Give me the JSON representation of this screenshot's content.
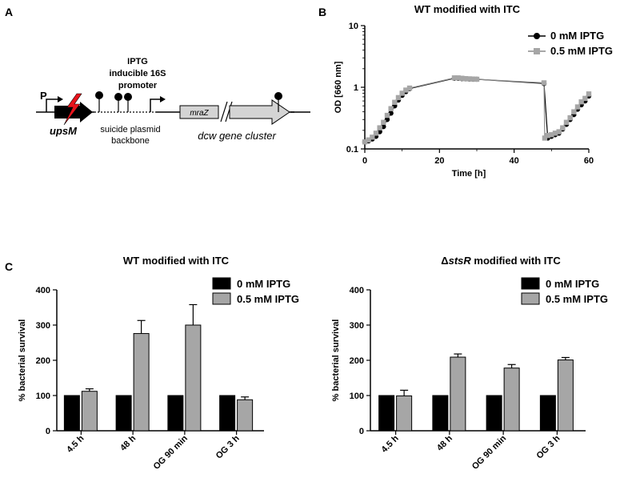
{
  "panels": {
    "a": "A",
    "b": "B",
    "c": "C"
  },
  "diagram": {
    "promoter_p": "P",
    "upsm": "upsM",
    "iptg_line1": "IPTG",
    "iptg_line2": "inducible 16S",
    "iptg_line3": "promoter",
    "plasmid_line1": "suicide plasmid",
    "plasmid_line2": "backbone",
    "mraz": "mraZ",
    "dcw": "dcw gene cluster",
    "colors": {
      "bolt": "#e8141c",
      "gene": "#d4d4d4",
      "black": "#000000"
    }
  },
  "chart_data": [
    {
      "type": "line",
      "title": "WT modified with ITC",
      "xlabel": "Time [h]",
      "ylabel": "OD [660 nm]",
      "yscale": "log",
      "xlim": [
        0,
        60
      ],
      "ylim": [
        0.1,
        10
      ],
      "xticks": [
        "0",
        "20",
        "40",
        "60"
      ],
      "yticks": [
        "0.1",
        "1",
        "10"
      ],
      "legend": "top-right",
      "series": [
        {
          "name": "0 mM IPTG",
          "color": "#000000",
          "marker": "circle",
          "x": [
            0,
            1,
            2,
            3,
            4,
            5,
            6,
            7,
            8,
            9,
            10,
            11,
            12,
            24,
            25,
            26,
            27,
            28,
            29,
            30,
            48,
            49,
            50,
            51,
            52,
            53,
            54,
            55,
            56,
            57,
            58,
            59,
            60
          ],
          "y": [
            0.13,
            0.135,
            0.145,
            0.16,
            0.19,
            0.23,
            0.3,
            0.38,
            0.5,
            0.62,
            0.74,
            0.85,
            0.95,
            1.4,
            1.4,
            1.38,
            1.37,
            1.36,
            1.35,
            1.35,
            1.15,
            0.15,
            0.16,
            0.17,
            0.18,
            0.21,
            0.25,
            0.3,
            0.36,
            0.44,
            0.52,
            0.6,
            0.72
          ]
        },
        {
          "name": "0.5 mM IPTG",
          "color": "#a6a6a6",
          "marker": "square",
          "x": [
            0,
            1,
            2,
            3,
            4,
            5,
            6,
            7,
            8,
            9,
            10,
            11,
            12,
            24,
            25,
            26,
            27,
            28,
            29,
            30,
            48,
            48.2,
            49,
            50,
            51,
            52,
            53,
            54,
            55,
            56,
            57,
            58,
            59,
            60
          ],
          "y": [
            0.13,
            0.14,
            0.155,
            0.18,
            0.22,
            0.27,
            0.35,
            0.45,
            0.57,
            0.68,
            0.8,
            0.9,
            0.97,
            1.42,
            1.42,
            1.4,
            1.38,
            1.37,
            1.36,
            1.35,
            1.18,
            0.15,
            0.165,
            0.17,
            0.18,
            0.19,
            0.22,
            0.27,
            0.32,
            0.4,
            0.48,
            0.58,
            0.66,
            0.78
          ]
        }
      ]
    },
    {
      "type": "bar",
      "title": "WT modified with ITC",
      "ylabel": "% bacterial survival",
      "ylim": [
        0,
        400
      ],
      "yticks": [
        "0",
        "100",
        "200",
        "300",
        "400"
      ],
      "legend": "top-right",
      "categories": [
        "4.5 h",
        "48 h",
        "OG 90 min",
        "OG 3 h"
      ],
      "series": [
        {
          "name": "0 mM IPTG",
          "color": "#000000",
          "values": [
            100,
            100,
            100,
            100
          ],
          "errors": [
            0,
            0,
            0,
            0
          ]
        },
        {
          "name": "0.5 mM IPTG",
          "color": "#a6a6a6",
          "values": [
            112,
            276,
            300,
            88
          ],
          "errors": [
            7,
            37,
            58,
            8
          ]
        }
      ]
    },
    {
      "type": "bar",
      "title_prefix": "Δ",
      "title_italic": "stsR",
      "title_suffix": " modified with ITC",
      "ylabel": "% bacterial survival",
      "ylim": [
        0,
        400
      ],
      "yticks": [
        "0",
        "100",
        "200",
        "300",
        "400"
      ],
      "legend": "top-right",
      "categories": [
        "4.5 h",
        "48 h",
        "OG 90 min",
        "OG 3 h"
      ],
      "series": [
        {
          "name": "0 mM IPTG",
          "color": "#000000",
          "values": [
            100,
            100,
            100,
            100
          ],
          "errors": [
            0,
            0,
            0,
            0
          ]
        },
        {
          "name": "0.5 mM IPTG",
          "color": "#a6a6a6",
          "values": [
            99,
            209,
            178,
            201
          ],
          "errors": [
            16,
            9,
            10,
            7
          ]
        }
      ]
    }
  ]
}
